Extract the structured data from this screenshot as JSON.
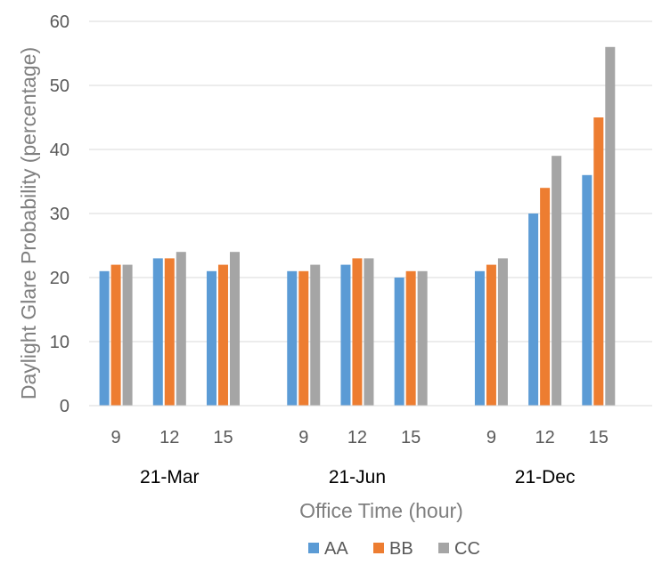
{
  "chart_data": {
    "type": "bar",
    "xlabel": "Office Time (hour)",
    "ylabel": "Daylight Glare Probability (percentage)",
    "ylim": [
      0,
      60
    ],
    "yticks": [
      0,
      10,
      20,
      30,
      40,
      50,
      60
    ],
    "grid": true,
    "legend_position": "bottom",
    "groups": [
      {
        "label": "21-Mar",
        "categories": [
          "9",
          "12",
          "15"
        ]
      },
      {
        "label": "21-Jun",
        "categories": [
          "9",
          "12",
          "15"
        ]
      },
      {
        "label": "21-Dec",
        "categories": [
          "9",
          "12",
          "15"
        ]
      }
    ],
    "series": [
      {
        "name": "AA",
        "color": "#5b9bd5",
        "values": [
          21,
          23,
          21,
          21,
          22,
          20,
          21,
          30,
          36
        ]
      },
      {
        "name": "BB",
        "color": "#ed7d31",
        "values": [
          22,
          23,
          22,
          21,
          23,
          21,
          22,
          34,
          45
        ]
      },
      {
        "name": "CC",
        "color": "#a5a5a5",
        "values": [
          22,
          24,
          24,
          22,
          23,
          21,
          23,
          39,
          56
        ]
      }
    ]
  }
}
